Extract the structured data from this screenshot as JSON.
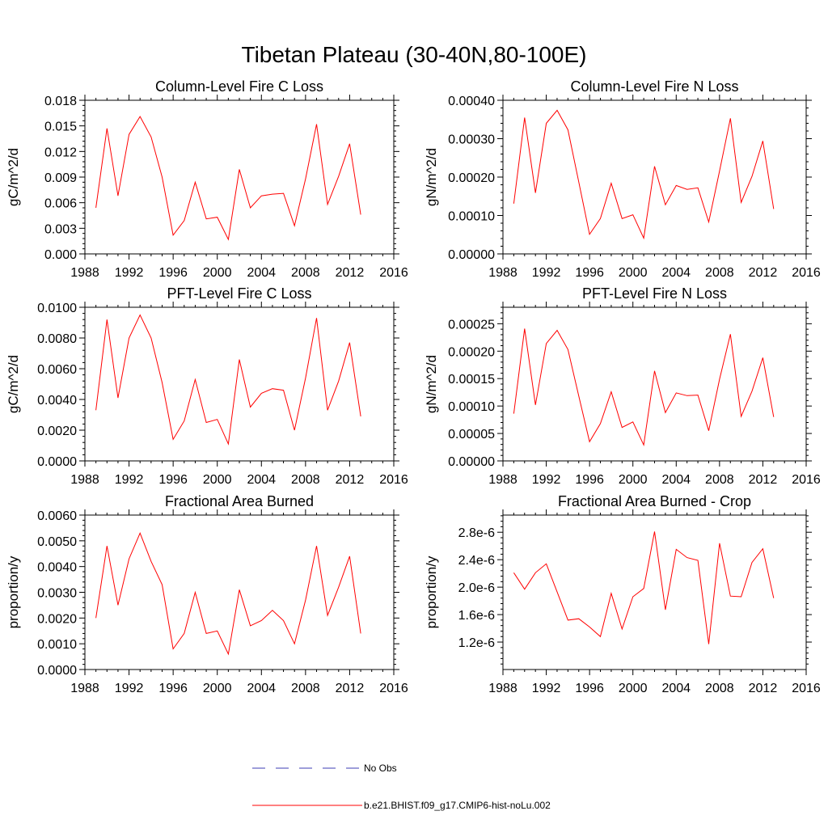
{
  "figure": {
    "title": "Tibetan Plateau (30-40N,80-100E)"
  },
  "legend": [
    {
      "label": "No Obs",
      "color": "#3c3cb4",
      "style": "dashed"
    },
    {
      "label": "b.e21.BHIST.f09_g17.CMIP6-hist-noLu.002",
      "color": "#ff0000",
      "style": "solid"
    }
  ],
  "chart_data": [
    {
      "type": "line",
      "title": "Column-Level Fire C Loss",
      "ylabel": "gC/m^2/d",
      "xlim": [
        1988,
        2016
      ],
      "xticks": [
        "1988",
        "1992",
        "1996",
        "2000",
        "2004",
        "2008",
        "2012",
        "2016"
      ],
      "ylim": [
        0,
        0.018
      ],
      "yticks": [
        "0.000",
        "0.003",
        "0.006",
        "0.009",
        "0.012",
        "0.015",
        "0.018"
      ],
      "x": [
        1989,
        1990,
        1991,
        1992,
        1993,
        1994,
        1995,
        1996,
        1997,
        1998,
        1999,
        2000,
        2001,
        2002,
        2003,
        2004,
        2005,
        2006,
        2007,
        2008,
        2009,
        2010,
        2011,
        2012,
        2013
      ],
      "series": [
        {
          "color": "#ff0000",
          "values": [
            0.0054,
            0.0147,
            0.0068,
            0.014,
            0.0161,
            0.0137,
            0.009,
            0.0022,
            0.0039,
            0.0084,
            0.0041,
            0.0043,
            0.0017,
            0.0099,
            0.0054,
            0.0068,
            0.007,
            0.0071,
            0.0033,
            0.0088,
            0.0152,
            0.0058,
            0.0091,
            0.0129,
            0.0046
          ]
        }
      ]
    },
    {
      "type": "line",
      "title": "Column-Level Fire N Loss",
      "ylabel": "gN/m^2/d",
      "xlim": [
        1988,
        2016
      ],
      "xticks": [
        "1988",
        "1992",
        "1996",
        "2000",
        "2004",
        "2008",
        "2012",
        "2016"
      ],
      "ylim": [
        0,
        0.0004
      ],
      "yticks": [
        "0.00000",
        "0.00010",
        "0.00020",
        "0.00030",
        "0.00040"
      ],
      "x": [
        1989,
        1990,
        1991,
        1992,
        1993,
        1994,
        1995,
        1996,
        1997,
        1998,
        1999,
        2000,
        2001,
        2002,
        2003,
        2004,
        2005,
        2006,
        2007,
        2008,
        2009,
        2010,
        2011,
        2012,
        2013
      ],
      "series": [
        {
          "color": "#ff0000",
          "values": [
            0.000131,
            0.000355,
            0.000159,
            0.00034,
            0.000374,
            0.000323,
            0.000187,
            5.1e-05,
            9.2e-05,
            0.000184,
            9.2e-05,
            0.000102,
            4.1e-05,
            0.000228,
            0.000128,
            0.000178,
            0.000168,
            0.000172,
            8.3e-05,
            0.000216,
            0.000353,
            0.000134,
            0.000202,
            0.000294,
            0.000117
          ]
        }
      ]
    },
    {
      "type": "line",
      "title": "PFT-Level Fire C Loss",
      "ylabel": "gC/m^2/d",
      "xlim": [
        1988,
        2016
      ],
      "xticks": [
        "1988",
        "1992",
        "1996",
        "2000",
        "2004",
        "2008",
        "2012",
        "2016"
      ],
      "ylim": [
        0,
        0.01
      ],
      "yticks": [
        "0.0000",
        "0.0020",
        "0.0040",
        "0.0060",
        "0.0080",
        "0.0100"
      ],
      "x": [
        1989,
        1990,
        1991,
        1992,
        1993,
        1994,
        1995,
        1996,
        1997,
        1998,
        1999,
        2000,
        2001,
        2002,
        2003,
        2004,
        2005,
        2006,
        2007,
        2008,
        2009,
        2010,
        2011,
        2012,
        2013
      ],
      "series": [
        {
          "color": "#ff0000",
          "values": [
            0.0033,
            0.0092,
            0.0041,
            0.008,
            0.0095,
            0.008,
            0.0051,
            0.0014,
            0.0026,
            0.0053,
            0.0025,
            0.0027,
            0.0011,
            0.0066,
            0.0035,
            0.0044,
            0.0047,
            0.0046,
            0.002,
            0.0054,
            0.0093,
            0.0033,
            0.0052,
            0.0077,
            0.0029
          ]
        }
      ]
    },
    {
      "type": "line",
      "title": "PFT-Level Fire N Loss",
      "ylabel": "gN/m^2/d",
      "xlim": [
        1988,
        2016
      ],
      "xticks": [
        "1988",
        "1992",
        "1996",
        "2000",
        "2004",
        "2008",
        "2012",
        "2016"
      ],
      "ylim": [
        0,
        0.00028
      ],
      "yticks": [
        "0.00000",
        "0.00005",
        "0.00010",
        "0.00015",
        "0.00020",
        "0.00025"
      ],
      "x": [
        1989,
        1990,
        1991,
        1992,
        1993,
        1994,
        1995,
        1996,
        1997,
        1998,
        1999,
        2000,
        2001,
        2002,
        2003,
        2004,
        2005,
        2006,
        2007,
        2008,
        2009,
        2010,
        2011,
        2012,
        2013
      ],
      "series": [
        {
          "color": "#ff0000",
          "values": [
            8.6e-05,
            0.000241,
            0.000102,
            0.000214,
            0.000238,
            0.000203,
            0.000118,
            3.5e-05,
            6.8e-05,
            0.000126,
            6.1e-05,
            7.1e-05,
            2.9e-05,
            0.000164,
            8.8e-05,
            0.000124,
            0.000119,
            0.00012,
            5.5e-05,
            0.000149,
            0.000231,
            8.1e-05,
            0.000127,
            0.000188,
            8e-05
          ]
        }
      ]
    },
    {
      "type": "line",
      "title": "Fractional Area Burned",
      "ylabel": "proportion/y",
      "xlim": [
        1988,
        2016
      ],
      "xticks": [
        "1988",
        "1992",
        "1996",
        "2000",
        "2004",
        "2008",
        "2012",
        "2016"
      ],
      "ylim": [
        0,
        0.006
      ],
      "yticks": [
        "0.0000",
        "0.0010",
        "0.0020",
        "0.0030",
        "0.0040",
        "0.0050",
        "0.0060"
      ],
      "x": [
        1989,
        1990,
        1991,
        1992,
        1993,
        1994,
        1995,
        1996,
        1997,
        1998,
        1999,
        2000,
        2001,
        2002,
        2003,
        2004,
        2005,
        2006,
        2007,
        2008,
        2009,
        2010,
        2011,
        2012,
        2013
      ],
      "series": [
        {
          "color": "#ff0000",
          "values": [
            0.002,
            0.0048,
            0.0025,
            0.0043,
            0.0053,
            0.0042,
            0.0033,
            0.0008,
            0.0014,
            0.003,
            0.0014,
            0.0015,
            0.0006,
            0.0031,
            0.0017,
            0.0019,
            0.0023,
            0.0019,
            0.001,
            0.0027,
            0.0048,
            0.0021,
            0.0032,
            0.0044,
            0.0014
          ]
        }
      ]
    },
    {
      "type": "line",
      "title": "Fractional Area Burned - Crop",
      "ylabel": "proportion/y",
      "xlim": [
        1988,
        2016
      ],
      "xticks": [
        "1988",
        "1992",
        "1996",
        "2000",
        "2004",
        "2008",
        "2012",
        "2016"
      ],
      "ylim": [
        8e-07,
        3.05e-06
      ],
      "yticks": [
        {
          "v": 1.2e-06,
          "label": "1.2e-6"
        },
        {
          "v": 1.6e-06,
          "label": "1.6e-6"
        },
        {
          "v": 2e-06,
          "label": "2.0e-6"
        },
        {
          "v": 2.4e-06,
          "label": "2.4e-6"
        },
        {
          "v": 2.8e-06,
          "label": "2.8e-6"
        }
      ],
      "x": [
        1989,
        1990,
        1991,
        1992,
        1993,
        1994,
        1995,
        1996,
        1997,
        1998,
        1999,
        2000,
        2001,
        2002,
        2003,
        2004,
        2005,
        2006,
        2007,
        2008,
        2009,
        2010,
        2011,
        2012,
        2013
      ],
      "series": [
        {
          "color": "#ff0000",
          "values": [
            2.21e-06,
            1.97e-06,
            2.21e-06,
            2.34e-06,
            1.93e-06,
            1.52e-06,
            1.54e-06,
            1.42e-06,
            1.28e-06,
            1.91e-06,
            1.39e-06,
            1.86e-06,
            1.98e-06,
            2.81e-06,
            1.67e-06,
            2.55e-06,
            2.43e-06,
            2.39e-06,
            1.17e-06,
            2.64e-06,
            1.87e-06,
            1.86e-06,
            2.36e-06,
            2.56e-06,
            1.84e-06
          ]
        }
      ]
    }
  ]
}
